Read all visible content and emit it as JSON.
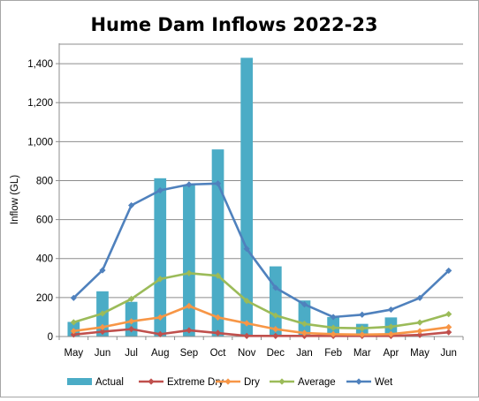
{
  "chart_data": {
    "type": "bar",
    "title": "Hume Dam Inflows 2022-23",
    "xlabel": "",
    "ylabel": "Inflow (GL)",
    "ylim": [
      0,
      1500
    ],
    "y_ticks": [
      0,
      200,
      400,
      600,
      800,
      1000,
      1200,
      1400
    ],
    "y_tick_labels": [
      "0",
      "200",
      "400",
      "600",
      "800",
      "1,000",
      "1,200",
      "1,400"
    ],
    "grid": true,
    "legend_position": "bottom",
    "categories": [
      "May",
      "Jun",
      "Jul",
      "Aug",
      "Sep",
      "Oct",
      "Nov",
      "Dec",
      "Jan",
      "Feb",
      "Mar",
      "Apr",
      "May",
      "Jun"
    ],
    "series": [
      {
        "name": "Actual",
        "kind": "bar",
        "color": "#4bacc6",
        "values": [
          75,
          232,
          178,
          812,
          778,
          960,
          1430,
          360,
          185,
          100,
          65,
          98,
          null,
          null
        ]
      },
      {
        "name": "Extreme Dry",
        "kind": "line",
        "color": "#c0504d",
        "values": [
          10,
          25,
          38,
          12,
          32,
          18,
          3,
          3,
          3,
          3,
          3,
          3,
          8,
          22
        ]
      },
      {
        "name": "Dry",
        "kind": "line",
        "color": "#f79646",
        "values": [
          28,
          48,
          78,
          98,
          157,
          98,
          68,
          38,
          18,
          12,
          10,
          12,
          28,
          48
        ]
      },
      {
        "name": "Average",
        "kind": "line",
        "color": "#9bbb59",
        "values": [
          73,
          118,
          193,
          295,
          325,
          312,
          183,
          108,
          65,
          45,
          42,
          50,
          72,
          115
        ]
      },
      {
        "name": "Wet",
        "kind": "line",
        "color": "#4f81bd",
        "values": [
          198,
          340,
          673,
          750,
          780,
          785,
          450,
          250,
          165,
          100,
          112,
          138,
          198,
          338
        ]
      }
    ]
  }
}
